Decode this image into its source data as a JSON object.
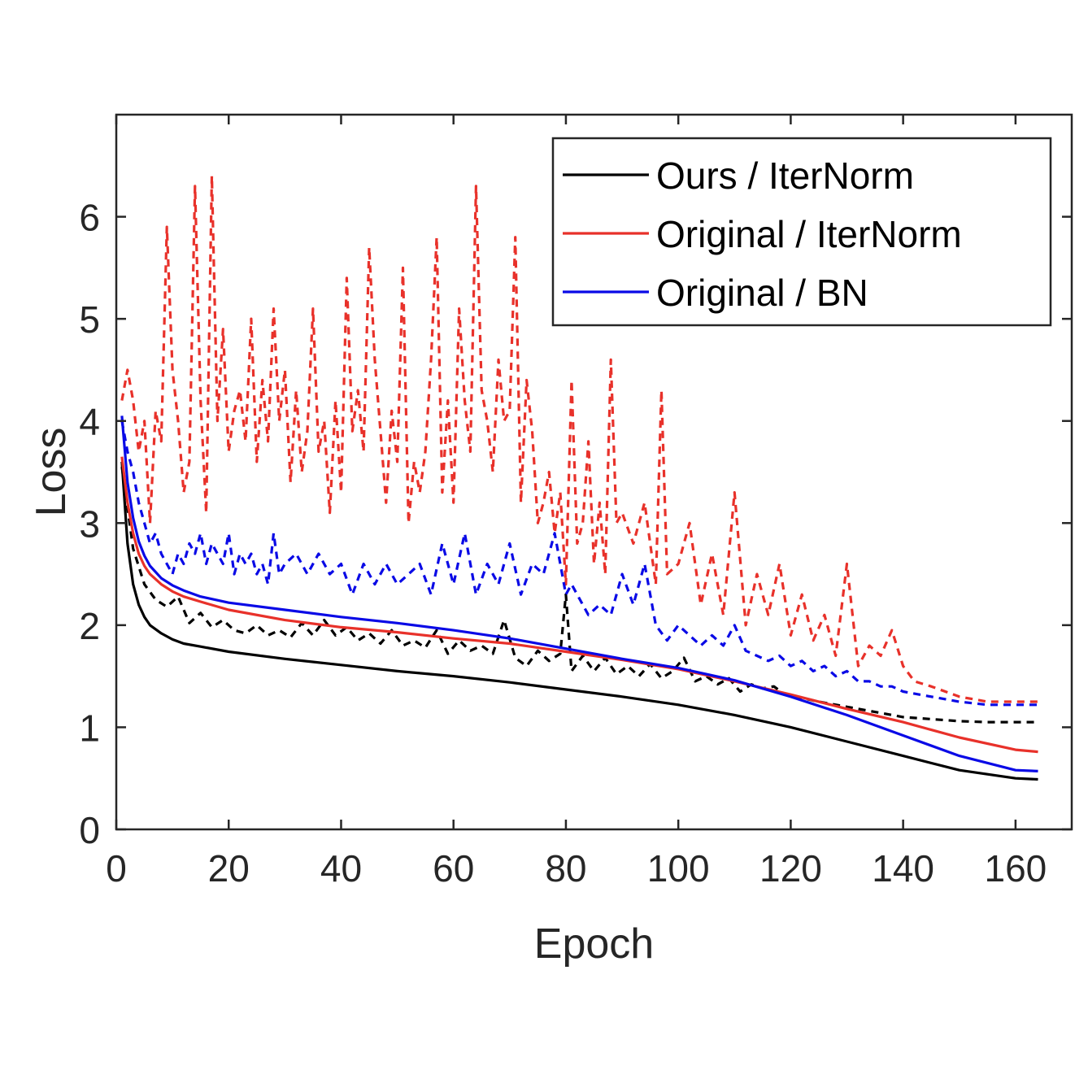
{
  "chart_data": {
    "type": "line",
    "title": "",
    "xlabel": "Epoch",
    "ylabel": "Loss",
    "xlim": [
      0,
      170
    ],
    "ylim": [
      0,
      7
    ],
    "xticks": [
      0,
      20,
      40,
      60,
      80,
      100,
      120,
      140,
      160
    ],
    "yticks": [
      0,
      1,
      2,
      3,
      4,
      5,
      6
    ],
    "legend_position": "top-right",
    "legend": [
      {
        "label": "Ours / IterNorm",
        "color": "#000000"
      },
      {
        "label": "Original / IterNorm",
        "color": "#e8312a"
      },
      {
        "label": "Original / BN",
        "color": "#0a0ae6"
      }
    ],
    "series": [
      {
        "name": "Ours / IterNorm",
        "style": "solid",
        "color": "#000000",
        "x": [
          1,
          2,
          3,
          4,
          5,
          6,
          8,
          10,
          12,
          15,
          20,
          30,
          40,
          50,
          60,
          70,
          80,
          90,
          100,
          110,
          120,
          130,
          140,
          150,
          160,
          164
        ],
        "y": [
          3.6,
          2.8,
          2.4,
          2.2,
          2.08,
          2.0,
          1.92,
          1.86,
          1.82,
          1.79,
          1.74,
          1.67,
          1.61,
          1.55,
          1.5,
          1.44,
          1.37,
          1.3,
          1.22,
          1.12,
          1.0,
          0.86,
          0.72,
          0.58,
          0.5,
          0.49
        ]
      },
      {
        "name": "Original / IterNorm",
        "style": "solid",
        "color": "#e8312a",
        "x": [
          1,
          2,
          3,
          4,
          5,
          6,
          8,
          10,
          12,
          15,
          20,
          30,
          40,
          50,
          60,
          70,
          80,
          90,
          100,
          110,
          120,
          130,
          140,
          150,
          160,
          164
        ],
        "y": [
          3.65,
          3.2,
          2.9,
          2.7,
          2.58,
          2.5,
          2.4,
          2.33,
          2.28,
          2.23,
          2.15,
          2.05,
          1.98,
          1.93,
          1.87,
          1.82,
          1.74,
          1.66,
          1.57,
          1.45,
          1.32,
          1.18,
          1.05,
          0.9,
          0.78,
          0.76
        ]
      },
      {
        "name": "Original / BN",
        "style": "solid",
        "color": "#0a0ae6",
        "x": [
          1,
          2,
          3,
          4,
          5,
          6,
          8,
          10,
          12,
          15,
          20,
          30,
          40,
          50,
          60,
          70,
          80,
          90,
          100,
          110,
          120,
          130,
          140,
          150,
          160,
          164
        ],
        "y": [
          4.05,
          3.4,
          3.05,
          2.82,
          2.68,
          2.58,
          2.46,
          2.39,
          2.34,
          2.28,
          2.22,
          2.15,
          2.08,
          2.02,
          1.95,
          1.87,
          1.77,
          1.67,
          1.58,
          1.46,
          1.3,
          1.12,
          0.92,
          0.72,
          0.58,
          0.57
        ]
      },
      {
        "name": "",
        "style": "dashed",
        "color": "#000000",
        "x": [
          1,
          3,
          5,
          7,
          9,
          11,
          13,
          15,
          17,
          19,
          21,
          23,
          25,
          27,
          29,
          31,
          33,
          35,
          37,
          39,
          41,
          43,
          45,
          47,
          49,
          51,
          53,
          55,
          57,
          59,
          61,
          63,
          65,
          67,
          69,
          71,
          73,
          75,
          77,
          79,
          80,
          81,
          83,
          85,
          87,
          89,
          91,
          93,
          95,
          97,
          99,
          101,
          103,
          105,
          107,
          109,
          111,
          113,
          115,
          117,
          119,
          121,
          125,
          130,
          135,
          140,
          145,
          150,
          155,
          160,
          164
        ],
        "y": [
          3.55,
          2.75,
          2.4,
          2.25,
          2.18,
          2.28,
          2.02,
          2.12,
          1.98,
          2.05,
          1.95,
          1.92,
          2.0,
          1.9,
          1.95,
          1.88,
          2.02,
          1.9,
          2.05,
          1.9,
          1.98,
          1.85,
          1.92,
          1.82,
          1.95,
          1.8,
          1.85,
          1.78,
          1.95,
          1.72,
          1.85,
          1.75,
          1.8,
          1.72,
          2.05,
          1.68,
          1.6,
          1.75,
          1.65,
          1.72,
          2.3,
          1.55,
          1.7,
          1.55,
          1.68,
          1.52,
          1.6,
          1.5,
          1.62,
          1.48,
          1.55,
          1.68,
          1.45,
          1.5,
          1.42,
          1.48,
          1.35,
          1.42,
          1.38,
          1.4,
          1.32,
          1.3,
          1.25,
          1.2,
          1.15,
          1.1,
          1.08,
          1.06,
          1.05,
          1.05,
          1.05
        ]
      },
      {
        "name": "",
        "style": "dashed",
        "color": "#e8312a",
        "x": [
          1,
          2,
          3,
          4,
          5,
          6,
          7,
          8,
          9,
          10,
          11,
          12,
          13,
          14,
          15,
          16,
          17,
          18,
          19,
          20,
          21,
          22,
          23,
          24,
          25,
          26,
          27,
          28,
          29,
          30,
          31,
          32,
          33,
          34,
          35,
          36,
          37,
          38,
          39,
          40,
          41,
          42,
          43,
          44,
          45,
          46,
          47,
          48,
          49,
          50,
          51,
          52,
          53,
          54,
          55,
          56,
          57,
          58,
          59,
          60,
          61,
          62,
          63,
          64,
          65,
          66,
          67,
          68,
          69,
          70,
          71,
          72,
          73,
          74,
          75,
          76,
          77,
          78,
          79,
          80,
          81,
          82,
          83,
          84,
          85,
          86,
          87,
          88,
          89,
          90,
          92,
          94,
          96,
          97,
          98,
          100,
          102,
          104,
          106,
          108,
          110,
          112,
          114,
          116,
          118,
          120,
          122,
          124,
          126,
          128,
          130,
          132,
          134,
          136,
          138,
          140,
          142,
          145,
          150,
          155,
          160,
          164
        ],
        "y": [
          4.2,
          4.5,
          4.2,
          3.7,
          4.0,
          3.0,
          4.1,
          3.8,
          5.9,
          4.5,
          4.0,
          3.3,
          3.6,
          6.3,
          4.2,
          3.1,
          6.4,
          4.0,
          4.9,
          3.7,
          4.1,
          4.3,
          3.8,
          5.0,
          3.6,
          4.4,
          3.8,
          5.1,
          4.0,
          4.5,
          3.4,
          4.3,
          3.5,
          3.9,
          5.1,
          3.7,
          4.0,
          3.1,
          4.2,
          3.3,
          5.4,
          3.9,
          4.3,
          3.7,
          5.7,
          4.6,
          3.9,
          3.2,
          4.1,
          3.6,
          5.5,
          3.0,
          3.6,
          3.3,
          3.7,
          4.6,
          5.8,
          3.3,
          4.2,
          3.2,
          5.1,
          4.2,
          3.7,
          6.3,
          4.3,
          4.0,
          3.5,
          4.6,
          4.0,
          4.1,
          5.8,
          3.2,
          4.4,
          3.9,
          3.0,
          3.2,
          3.5,
          2.9,
          3.3,
          2.4,
          4.4,
          2.8,
          3.0,
          3.8,
          2.6,
          3.2,
          2.5,
          4.6,
          3.0,
          3.1,
          2.8,
          3.2,
          2.4,
          4.3,
          2.5,
          2.6,
          3.0,
          2.2,
          2.7,
          2.1,
          3.3,
          2.0,
          2.5,
          2.1,
          2.6,
          1.9,
          2.3,
          1.85,
          2.1,
          1.7,
          2.6,
          1.6,
          1.8,
          1.7,
          1.95,
          1.6,
          1.45,
          1.4,
          1.3,
          1.25,
          1.25,
          1.25
        ]
      },
      {
        "name": "",
        "style": "dashed",
        "color": "#0a0ae6",
        "x": [
          1,
          2,
          3,
          4,
          5,
          6,
          7,
          8,
          9,
          10,
          11,
          12,
          13,
          14,
          15,
          16,
          17,
          18,
          19,
          20,
          21,
          22,
          23,
          24,
          25,
          26,
          27,
          28,
          29,
          30,
          32,
          34,
          36,
          38,
          40,
          42,
          44,
          46,
          48,
          50,
          52,
          54,
          56,
          58,
          60,
          62,
          64,
          66,
          68,
          70,
          72,
          74,
          76,
          78,
          80,
          81,
          82,
          84,
          86,
          88,
          90,
          92,
          94,
          96,
          98,
          100,
          102,
          104,
          106,
          108,
          110,
          112,
          114,
          116,
          118,
          120,
          122,
          124,
          126,
          128,
          130,
          132,
          134,
          136,
          138,
          140,
          145,
          150,
          155,
          160,
          164
        ],
        "y": [
          4.0,
          3.7,
          3.5,
          3.2,
          3.0,
          2.8,
          2.9,
          2.7,
          2.6,
          2.5,
          2.7,
          2.6,
          2.8,
          2.7,
          2.9,
          2.6,
          2.8,
          2.7,
          2.6,
          2.9,
          2.5,
          2.7,
          2.6,
          2.7,
          2.5,
          2.6,
          2.4,
          2.9,
          2.5,
          2.6,
          2.7,
          2.5,
          2.7,
          2.5,
          2.6,
          2.3,
          2.6,
          2.4,
          2.6,
          2.4,
          2.5,
          2.6,
          2.3,
          2.8,
          2.4,
          2.9,
          2.3,
          2.6,
          2.4,
          2.8,
          2.3,
          2.6,
          2.5,
          2.9,
          2.3,
          2.4,
          2.3,
          2.1,
          2.2,
          2.1,
          2.5,
          2.2,
          2.6,
          2.0,
          1.85,
          2.0,
          1.9,
          1.8,
          1.9,
          1.8,
          2.0,
          1.75,
          1.7,
          1.65,
          1.7,
          1.6,
          1.65,
          1.55,
          1.6,
          1.5,
          1.55,
          1.45,
          1.45,
          1.4,
          1.4,
          1.35,
          1.3,
          1.25,
          1.22,
          1.22,
          1.22
        ]
      }
    ]
  }
}
